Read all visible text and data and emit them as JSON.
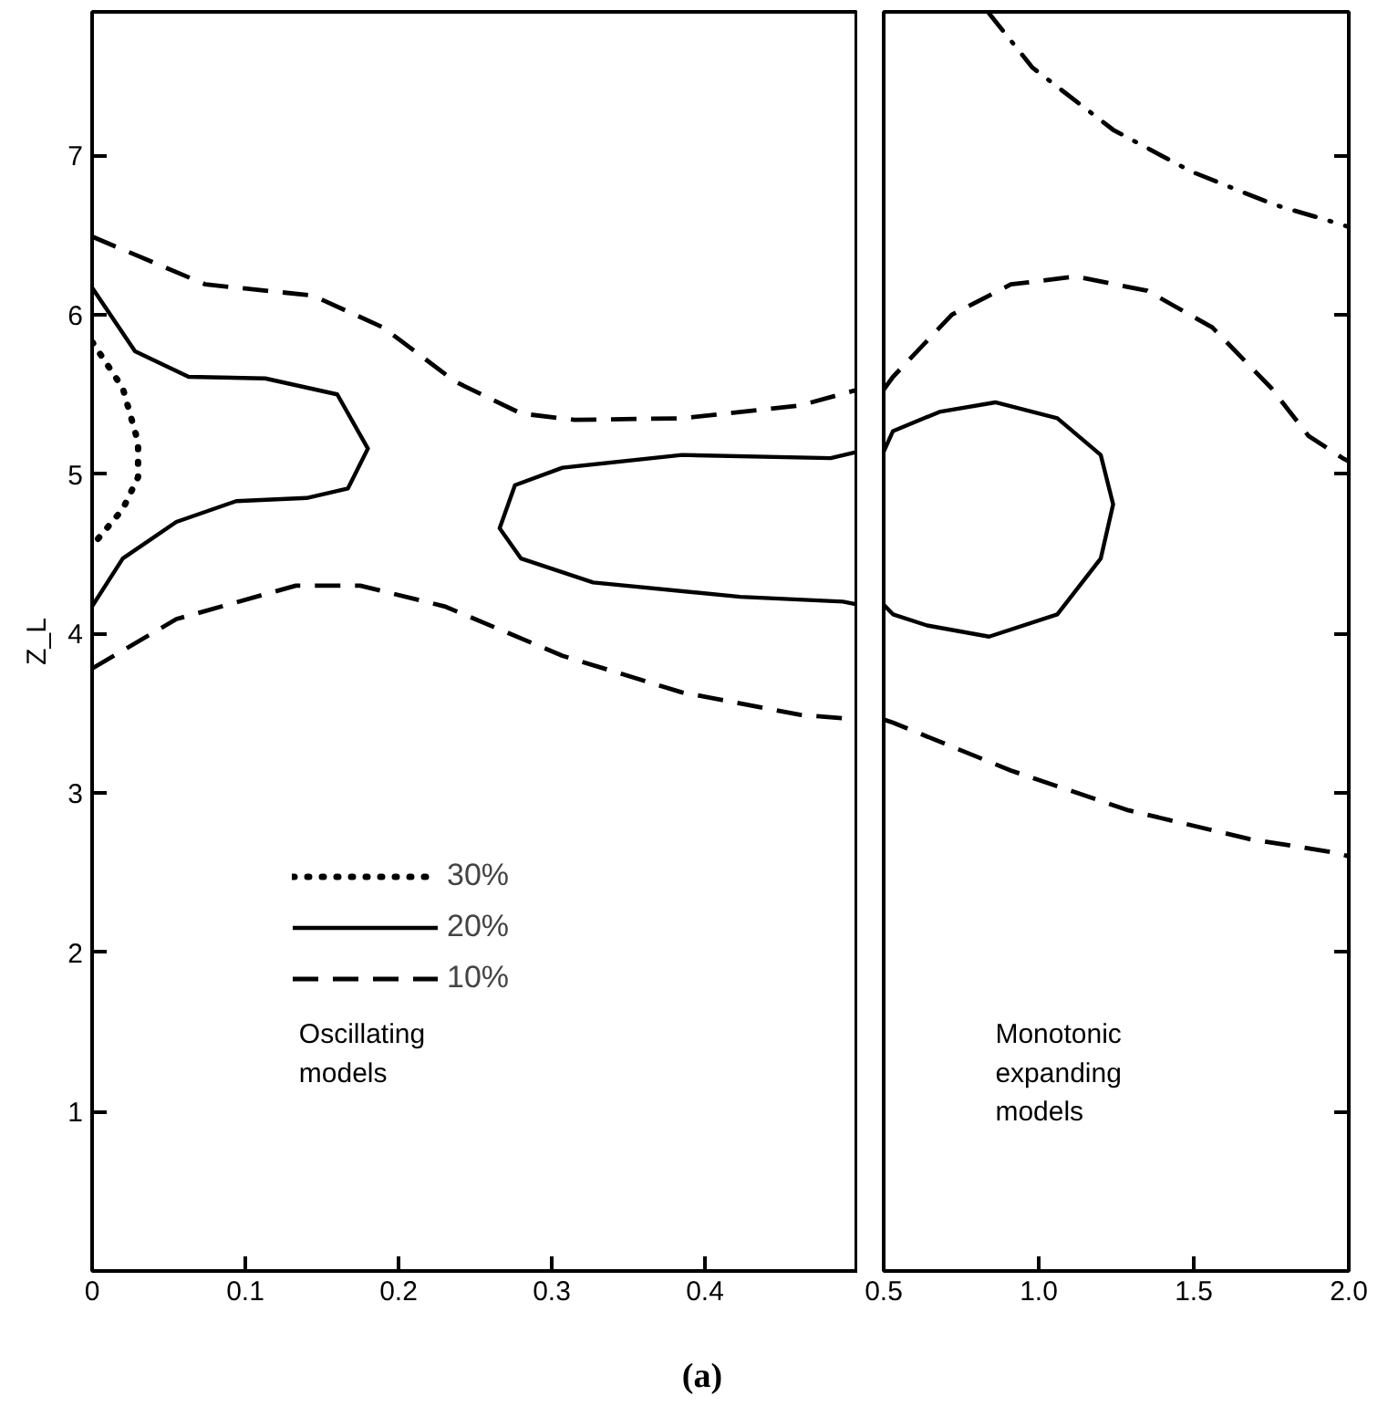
{
  "chart_data": [
    {
      "type": "line",
      "ylabel": "Z_L",
      "xlim": [
        0,
        0.5
      ],
      "ylim": [
        0,
        7.9
      ],
      "xticks": [
        0,
        0.1,
        0.2,
        0.3,
        0.4
      ],
      "yticks": [
        1,
        2,
        3,
        4,
        5,
        6,
        7
      ],
      "legend": "bottom left",
      "annotations": [
        "Oscillating\nmodels",
        "(a)"
      ],
      "series": [
        {
          "name": "30%",
          "color": "#000000",
          "line_style": "dotted",
          "x": [
            0,
            0.02,
            0.03,
            0.03,
            0.02,
            0
          ],
          "values": [
            5.83,
            5.54,
            5.2,
            4.98,
            4.78,
            4.55
          ]
        },
        {
          "name": "20%",
          "color": "#000000",
          "line_style": "solid",
          "x": [
            0,
            0.028,
            0.063,
            0.113,
            0.16,
            0.18,
            0.167,
            0.14,
            0.094,
            0.055,
            0.02,
            0,
            null,
            0.5,
            0.482,
            0.385,
            0.307,
            0.276,
            0.266,
            0.28,
            0.327,
            0.423,
            0.49,
            0.5
          ],
          "values": [
            6.17,
            5.77,
            5.61,
            5.6,
            5.5,
            5.16,
            4.91,
            4.85,
            4.83,
            4.7,
            4.47,
            4.17,
            null,
            5.14,
            5.1,
            5.12,
            5.04,
            4.93,
            4.66,
            4.47,
            4.32,
            4.23,
            4.2,
            4.18
          ]
        },
        {
          "name": "10%",
          "color": "#000000",
          "line_style": "dashed",
          "x": [
            0,
            0.074,
            0.144,
            0.19,
            0.237,
            0.28,
            0.315,
            0.385,
            0.462,
            0.5,
            null,
            0,
            0.055,
            0.133,
            0.175,
            0.23,
            0.307,
            0.385,
            0.462,
            0.5
          ],
          "values": [
            6.49,
            6.19,
            6.12,
            5.92,
            5.58,
            5.38,
            5.34,
            5.35,
            5.43,
            5.53,
            null,
            3.78,
            4.09,
            4.3,
            4.3,
            4.17,
            3.86,
            3.63,
            3.49,
            3.46
          ]
        }
      ]
    },
    {
      "type": "line",
      "xlim": [
        0.5,
        2.0
      ],
      "ylim": [
        0,
        7.9
      ],
      "tick_labels": "x",
      "xticks": [
        0.5,
        {
          "value": 1.0,
          "label": "1.0"
        },
        1.5,
        {
          "value": 2.0,
          "label": "2.0"
        }
      ],
      "yticks": [
        1,
        2,
        3,
        4,
        5,
        6,
        7
      ],
      "annotations": [
        "Monotonic\nexpanding\nmodels"
      ],
      "series": [
        {
          "color": "#000000",
          "line_style": "solid",
          "x": [
            0.5,
            0.53,
            0.68,
            0.86,
            1.06,
            1.2,
            1.24,
            1.2,
            1.06,
            0.84,
            0.64,
            0.53,
            0.5
          ],
          "values": [
            5.14,
            5.27,
            5.39,
            5.45,
            5.35,
            5.12,
            4.81,
            4.47,
            4.12,
            3.98,
            4.05,
            4.12,
            4.18
          ]
        },
        {
          "color": "#000000",
          "line_style": "dashed",
          "x": [
            0.5,
            0.53,
            0.72,
            0.91,
            1.12,
            1.35,
            1.56,
            1.75,
            1.87,
            1.98,
            2.0,
            null,
            0.5,
            0.53,
            0.91,
            1.29,
            1.68,
            1.97,
            2.0
          ],
          "values": [
            5.53,
            5.61,
            6.0,
            6.19,
            6.24,
            6.15,
            5.92,
            5.54,
            5.24,
            5.1,
            5.08,
            null,
            3.46,
            3.44,
            3.14,
            2.89,
            2.71,
            2.62,
            2.6
          ]
        },
        {
          "color": "#000000",
          "line_style": "dashdot",
          "x": [
            0.84,
            0.98,
            1.24,
            1.49,
            1.76,
            1.97,
            2.0
          ],
          "values": [
            7.89,
            7.55,
            7.16,
            6.9,
            6.69,
            6.57,
            6.55
          ]
        }
      ]
    }
  ]
}
